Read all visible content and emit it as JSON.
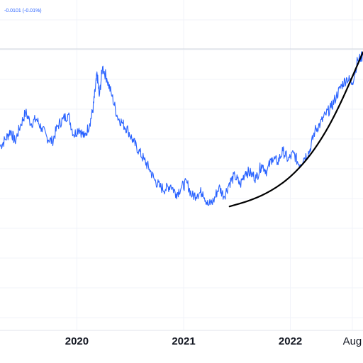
{
  "header": {
    "change_text": "-0.0101 (-0.01%)"
  },
  "colors": {
    "series": "#2962ff",
    "trend_curve": "#000000",
    "grid": "#f0f3fa",
    "axis_text": "#131722",
    "background": "#ffffff"
  },
  "chart_data": {
    "type": "line",
    "title": "",
    "xlabel": "",
    "ylabel": "",
    "grid": true,
    "y_axis_visible": false,
    "x_ticks": [
      {
        "label": "2020",
        "x": 2020.0,
        "style": "year"
      },
      {
        "label": "2021",
        "x": 2021.0,
        "style": "year"
      },
      {
        "label": "2022",
        "x": 2022.0,
        "style": "year"
      },
      {
        "label": "Aug",
        "x": 2022.58,
        "style": "month"
      }
    ],
    "xlim": [
      2019.28,
      2022.68
    ],
    "ylim": [
      0,
      100
    ],
    "series": [
      {
        "x": [
          2019.28,
          2019.33,
          2019.38,
          2019.42,
          2019.47,
          2019.52,
          2019.57,
          2019.62,
          2019.67,
          2019.72,
          2019.77,
          2019.82,
          2019.87,
          2019.92,
          2019.97,
          2020.02,
          2020.07,
          2020.12,
          2020.15,
          2020.17,
          2020.19,
          2020.21,
          2020.24,
          2020.28,
          2020.33,
          2020.38,
          2020.43,
          2020.48,
          2020.53,
          2020.58,
          2020.63,
          2020.68,
          2020.73,
          2020.78,
          2020.83,
          2020.88,
          2020.93,
          2020.98,
          2021.03,
          2021.08,
          2021.13,
          2021.18,
          2021.23,
          2021.28,
          2021.33,
          2021.38,
          2021.43,
          2021.48,
          2021.53,
          2021.58,
          2021.63,
          2021.68,
          2021.73,
          2021.78,
          2021.83,
          2021.88,
          2021.93,
          2021.98,
          2022.03,
          2022.08,
          2022.13,
          2022.18,
          2022.23,
          2022.28,
          2022.33,
          2022.38,
          2022.43,
          2022.48,
          2022.53,
          2022.58,
          2022.63,
          2022.68
        ],
        "values": [
          48,
          51,
          55,
          50,
          57,
          63,
          58,
          60,
          56,
          52,
          50,
          57,
          60,
          62,
          53,
          56,
          52,
          58,
          64,
          72,
          80,
          70,
          83,
          78,
          70,
          61,
          58,
          55,
          50,
          46,
          42,
          38,
          33,
          30,
          29,
          31,
          27,
          30,
          32,
          26,
          27,
          28,
          22,
          24,
          30,
          26,
          32,
          35,
          31,
          37,
          36,
          34,
          40,
          37,
          43,
          41,
          46,
          42,
          45,
          40,
          43,
          46,
          55,
          58,
          62,
          65,
          70,
          75,
          78,
          76,
          86,
          88
        ]
      }
    ],
    "trend_curve": {
      "x": [
        2021.43,
        2021.63,
        2021.83,
        2022.03,
        2022.23,
        2022.43,
        2022.68
      ],
      "values": [
        21.5,
        24.2,
        28.5,
        35.5,
        46.5,
        62.5,
        89.5
      ]
    }
  }
}
